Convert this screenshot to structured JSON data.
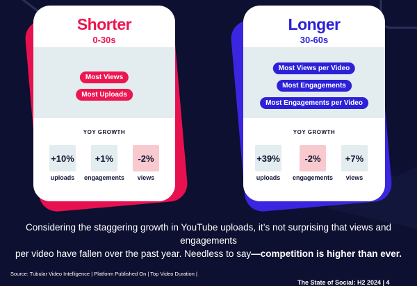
{
  "cards": {
    "shorter": {
      "title": "Shorter",
      "range": "0-30s",
      "pills": [
        "Most Views",
        "Most Uploads"
      ],
      "yoy_label": "YOY GROWTH",
      "metrics": [
        {
          "value": "+10%",
          "label": "uploads",
          "tone": "neutral"
        },
        {
          "value": "+1%",
          "label": "engagements",
          "tone": "neutral"
        },
        {
          "value": "-2%",
          "label": "views",
          "tone": "negative"
        }
      ]
    },
    "longer": {
      "title": "Longer",
      "range": "30-60s",
      "pills": [
        "Most Views per Video",
        "Most Engagements",
        "Most Engagements per Video"
      ],
      "yoy_label": "YOY GROWTH",
      "metrics": [
        {
          "value": "+39%",
          "label": "uploads",
          "tone": "neutral"
        },
        {
          "value": "-2%",
          "label": "engagements",
          "tone": "negative"
        },
        {
          "value": "+7%",
          "label": "views",
          "tone": "neutral"
        }
      ]
    }
  },
  "caption": {
    "line1": "Considering the staggering growth in YouTube uploads, it’s not surprising that views and engagements",
    "line2_plain": "per video have fallen over the past year. Needless to say",
    "line2_bold": "—competition is higher than ever."
  },
  "source": "Source: Tubular Video Intelligence | Platform Published On | Top Video Duration |",
  "footer": "The State of Social: H2 2024 | 4",
  "colors": {
    "background": "#0d1030",
    "pink": "#ec1650",
    "blue": "#2c21d8",
    "band": "#e3ecee",
    "negative_box": "#f8c9cf"
  }
}
